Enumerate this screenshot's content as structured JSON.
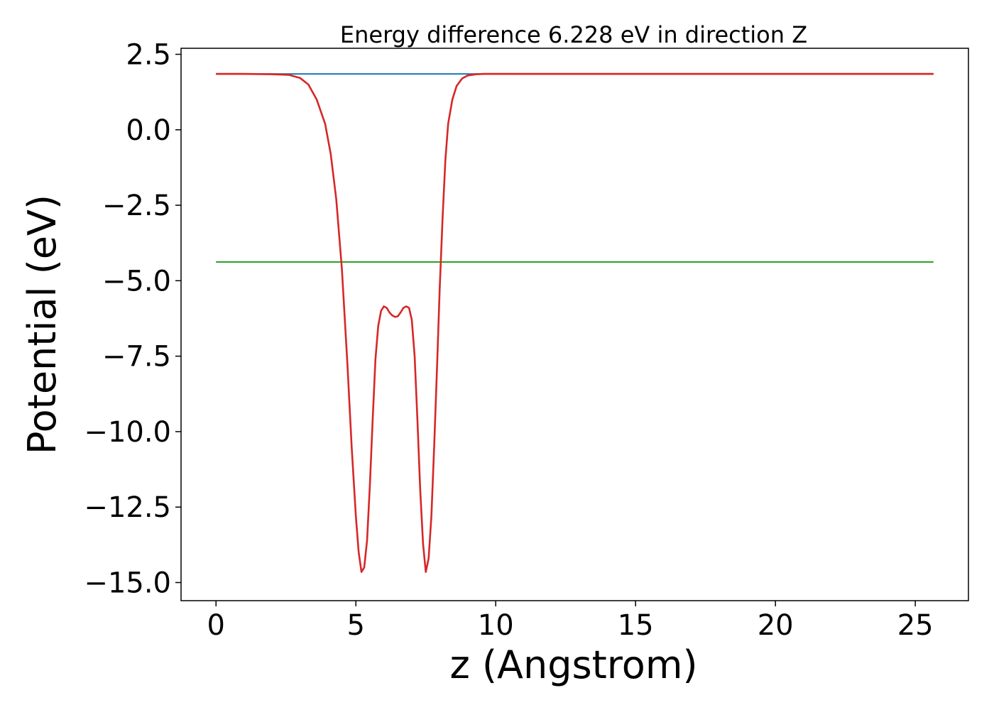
{
  "chart_data": {
    "type": "line",
    "title": "Energy difference 6.228 eV in direction Z",
    "xlabel": "z (Angstrom)",
    "ylabel": "Potential (eV)",
    "xlim": [
      -1.25,
      26.9
    ],
    "ylim": [
      -15.6,
      2.7
    ],
    "xticks": [
      0,
      5,
      10,
      15,
      20,
      25
    ],
    "xtick_labels": [
      "0",
      "5",
      "10",
      "15",
      "20",
      "25"
    ],
    "yticks": [
      2.5,
      0.0,
      -2.5,
      -5.0,
      -7.5,
      -10.0,
      -12.5,
      -15.0
    ],
    "ytick_labels": [
      "2.5",
      "0.0",
      "−2.5",
      "−5.0",
      "−7.5",
      "−10.0",
      "−12.5",
      "−15.0"
    ],
    "grid": false,
    "series": [
      {
        "color": "#1f77b4",
        "x": [
          0,
          25.65
        ],
        "y": [
          1.85,
          1.85
        ]
      },
      {
        "color": "#2ca02c",
        "x": [
          0,
          25.65
        ],
        "y": [
          -4.38,
          -4.38
        ]
      },
      {
        "color": "#9467bd",
        "x": [
          10.4,
          25.65
        ],
        "y": [
          1.85,
          1.85
        ]
      },
      {
        "color": "#d62728",
        "x": [
          0,
          1.0,
          2.0,
          2.6,
          3.0,
          3.3,
          3.6,
          3.9,
          4.1,
          4.3,
          4.5,
          4.7,
          4.85,
          5.0,
          5.1,
          5.2,
          5.3,
          5.4,
          5.5,
          5.6,
          5.7,
          5.8,
          5.9,
          6.0,
          6.1,
          6.2,
          6.3,
          6.4,
          6.5,
          6.6,
          6.7,
          6.8,
          6.9,
          7.0,
          7.1,
          7.2,
          7.3,
          7.4,
          7.5,
          7.6,
          7.7,
          7.8,
          7.9,
          8.0,
          8.1,
          8.2,
          8.3,
          8.45,
          8.6,
          8.8,
          9.0,
          9.3,
          9.6,
          9.9,
          10.3,
          10.8,
          12.0,
          15.0,
          20.0,
          25.65
        ],
        "y": [
          1.85,
          1.85,
          1.84,
          1.82,
          1.72,
          1.5,
          1.0,
          0.2,
          -0.8,
          -2.3,
          -4.6,
          -7.8,
          -10.5,
          -12.8,
          -14.0,
          -14.65,
          -14.5,
          -13.6,
          -11.8,
          -9.6,
          -7.6,
          -6.5,
          -6.0,
          -5.85,
          -5.9,
          -6.05,
          -6.15,
          -6.2,
          -6.18,
          -6.05,
          -5.9,
          -5.85,
          -5.9,
          -6.3,
          -7.5,
          -9.6,
          -11.9,
          -13.7,
          -14.65,
          -14.2,
          -12.8,
          -10.5,
          -7.9,
          -5.2,
          -2.9,
          -1.0,
          0.2,
          1.0,
          1.45,
          1.7,
          1.8,
          1.84,
          1.85,
          1.85,
          1.85,
          1.85,
          1.85,
          1.85,
          1.85,
          1.85
        ]
      }
    ]
  }
}
